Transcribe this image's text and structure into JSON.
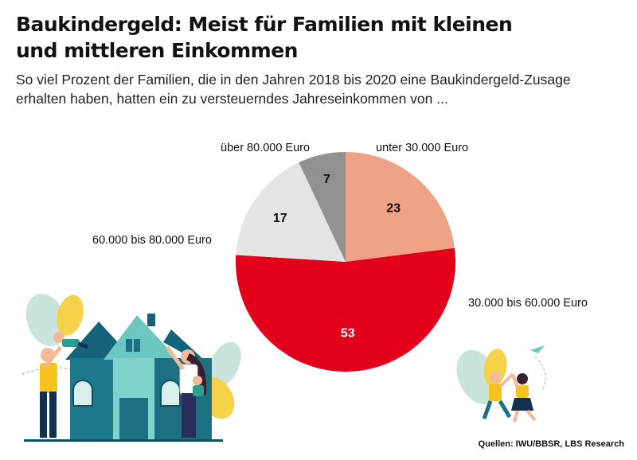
{
  "title_line1": "Baukindergeld: Meist für Familien mit kleinen",
  "title_line2": "und mittleren Einkommen",
  "subtitle_line1": "So viel Prozent der Familien, die in den Jahren 2018 bis 2020 eine Baukindergeld-Zusage",
  "subtitle_line2": "erhalten haben, hatten ein zu versteuerndes Jahreseinkommen von ...",
  "source": "Quellen: IWU/BBSR, LBS Research",
  "colors": {
    "slice_1": "#f0a285",
    "slice_2": "#e2001a",
    "slice_3": "#e4e4e4",
    "slice_4": "#919191"
  },
  "chart_data": {
    "type": "pie",
    "unit": "%",
    "categories": [
      "unter 30.000 Euro",
      "30.000 bis 60.000 Euro",
      "60.000 bis 80.000 Euro",
      "über 80.000 Euro"
    ],
    "values": [
      23,
      53,
      17,
      7
    ],
    "colors": [
      "#f0a285",
      "#e2001a",
      "#e4e4e4",
      "#919191"
    ],
    "start_angle_deg": 0,
    "direction": "clockwise",
    "legend": "direct-labels"
  },
  "illustrations": [
    "family-house-illustration",
    "children-high-five-illustration"
  ]
}
